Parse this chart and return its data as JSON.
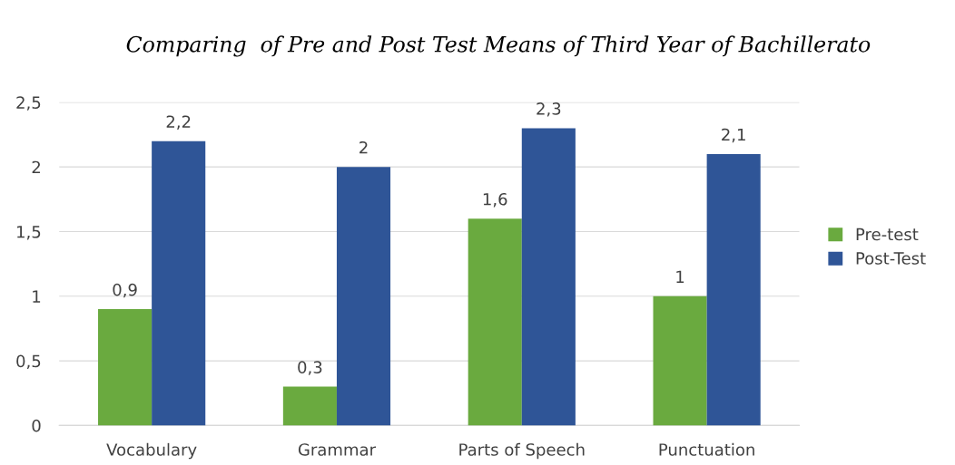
{
  "chart_data": {
    "type": "bar",
    "title": "Comparing  of Pre and Post Test Means of Third Year of Bachillerato",
    "categories": [
      "Vocabulary",
      "Grammar",
      "Parts of Speech",
      "Punctuation"
    ],
    "series": [
      {
        "name": "Pre-test",
        "color": "#6aaa3f",
        "values": [
          0.9,
          0.3,
          1.6,
          1.0
        ],
        "value_labels": [
          "0,9",
          "0,3",
          "1,6",
          "1"
        ]
      },
      {
        "name": "Post-Test",
        "color": "#2f5597",
        "values": [
          2.2,
          2.0,
          2.3,
          2.1
        ],
        "value_labels": [
          "2,2",
          "2",
          "2,3",
          "2,1"
        ]
      }
    ],
    "ylim": [
      0,
      2.5
    ],
    "yticks": [
      0,
      {
        "value": 0.5,
        "label": "0,5"
      },
      1,
      {
        "value": 1.5,
        "label": "1,5"
      },
      2,
      {
        "value": 2.5,
        "label": "2,5"
      }
    ],
    "grid": "y",
    "legend": "right"
  }
}
